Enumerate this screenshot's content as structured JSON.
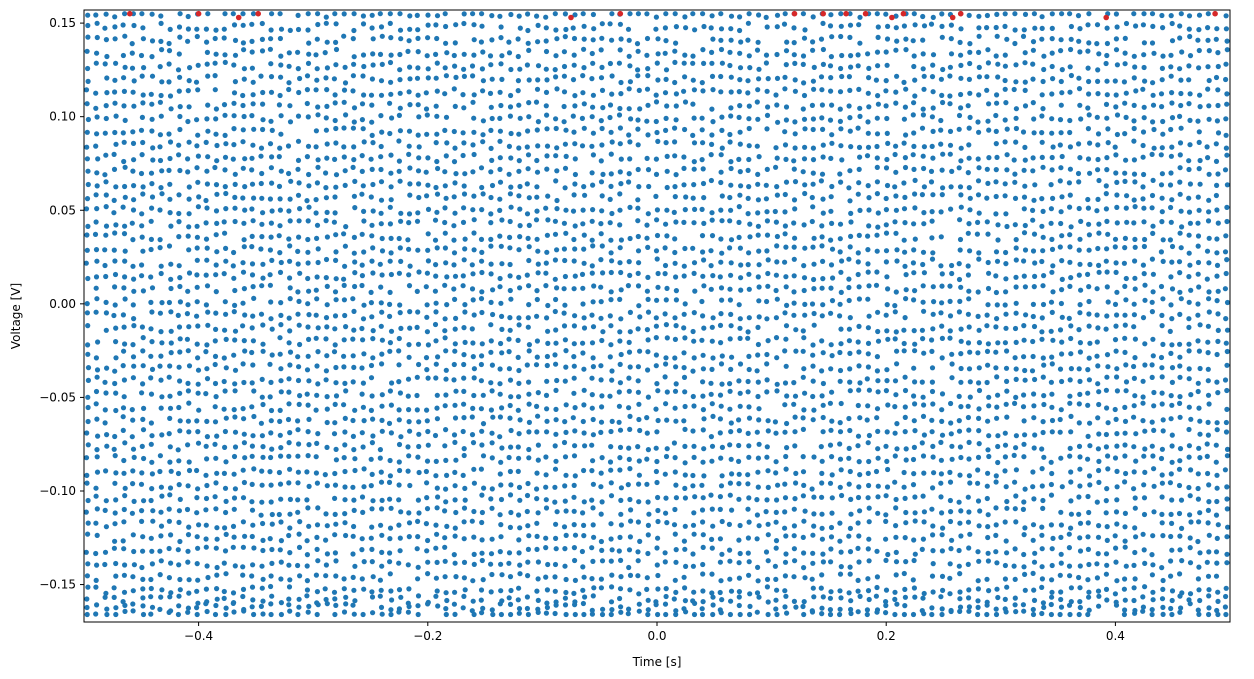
{
  "chart_data": {
    "type": "scatter",
    "title": "",
    "xlabel": "Time [s]",
    "ylabel": "Voltage [V]",
    "xlim": [
      -0.5,
      0.5
    ],
    "ylim": [
      -0.17,
      0.157
    ],
    "grid": false,
    "x_ticks": [
      {
        "value": -0.4,
        "label": "−0.4"
      },
      {
        "value": -0.2,
        "label": "−0.2"
      },
      {
        "value": 0.0,
        "label": "0.0"
      },
      {
        "value": 0.2,
        "label": "0.2"
      },
      {
        "value": 0.4,
        "label": "0.4"
      }
    ],
    "y_ticks": [
      {
        "value": 0.15,
        "label": "0.15"
      },
      {
        "value": 0.1,
        "label": "0.10"
      },
      {
        "value": 0.05,
        "label": "0.05"
      },
      {
        "value": 0.0,
        "label": "0.00"
      },
      {
        "value": -0.05,
        "label": "−0.05"
      },
      {
        "value": -0.1,
        "label": "−0.10"
      },
      {
        "value": -0.15,
        "label": "−0.15"
      }
    ],
    "series": [
      {
        "marker": "circle",
        "color": "#1f77b4",
        "sampled_points": {
          "x_start": -0.497,
          "x_end": 0.497,
          "n_columns": 125,
          "y_min": -0.166,
          "y_max": 0.155,
          "levels": [
            0.155,
            0.148,
            0.141,
            0.134,
            0.127,
            0.12,
            0.113,
            0.106,
            0.099,
            0.092,
            0.085,
            0.078,
            0.071,
            0.064,
            0.057,
            0.05,
            0.043,
            0.036,
            0.029,
            0.022,
            0.015,
            0.008,
            0.001,
            -0.006,
            -0.013,
            -0.02,
            -0.027,
            -0.034,
            -0.041,
            -0.048,
            -0.055,
            -0.062,
            -0.069,
            -0.076,
            -0.083,
            -0.09,
            -0.097,
            -0.104,
            -0.111,
            -0.118,
            -0.125,
            -0.132,
            -0.139,
            -0.146,
            -0.153,
            -0.158,
            -0.162,
            -0.166
          ]
        }
      },
      {
        "marker": "circle",
        "color": "#d62728",
        "x": [
          -0.46,
          -0.4,
          -0.365,
          -0.348,
          -0.075,
          -0.032,
          0.12,
          0.145,
          0.165,
          0.182,
          0.205,
          0.215,
          0.258,
          0.265,
          0.392,
          0.487
        ],
        "y": [
          0.155,
          0.155,
          0.153,
          0.155,
          0.153,
          0.155,
          0.155,
          0.155,
          0.155,
          0.155,
          0.153,
          0.155,
          0.153,
          0.155,
          0.153,
          0.155
        ]
      }
    ]
  }
}
